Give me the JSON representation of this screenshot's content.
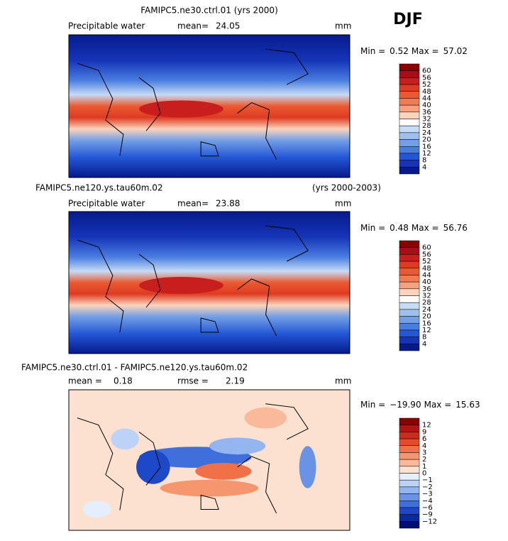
{
  "season": "DJF",
  "panels": [
    {
      "title": "FAMIPC5.ne30.ctrl.01 (yrs 2000)",
      "variable": "Precipitable water",
      "stats": [
        {
          "label": "mean=",
          "value": "24.05"
        }
      ],
      "units": "mm",
      "min_label": "Min =",
      "min": "0.52",
      "max_label": "Max =",
      "max": "57.02",
      "colorbar": {
        "labels": [
          "60",
          "56",
          "52",
          "48",
          "44",
          "40",
          "36",
          "32",
          "28",
          "24",
          "20",
          "16",
          "12",
          "8",
          "4"
        ],
        "colors": [
          "#8b0000",
          "#a50f15",
          "#c81e1e",
          "#de3b22",
          "#ea5a32",
          "#f27b52",
          "#f6a17f",
          "#fbd4bd",
          "#fdfcfa",
          "#c6dbf5",
          "#9ec0ef",
          "#739fe6",
          "#4a7de0",
          "#2457d6",
          "#1535b8",
          "#061a8c"
        ]
      }
    },
    {
      "title": "FAMIPC5.ne120.ys.tau60m.02",
      "title_right": "(yrs 2000-2003)",
      "variable": "Precipitable water",
      "stats": [
        {
          "label": "mean=",
          "value": "23.88"
        }
      ],
      "units": "mm",
      "min_label": "Min =",
      "min": "0.48",
      "max_label": "Max =",
      "max": "56.76",
      "colorbar": {
        "labels": [
          "60",
          "56",
          "52",
          "48",
          "44",
          "40",
          "36",
          "32",
          "28",
          "24",
          "20",
          "16",
          "12",
          "8",
          "4"
        ],
        "colors": [
          "#8b0000",
          "#a50f15",
          "#c81e1e",
          "#de3b22",
          "#ea5a32",
          "#f27b52",
          "#f6a17f",
          "#fbd4bd",
          "#fdfcfa",
          "#c6dbf5",
          "#9ec0ef",
          "#739fe6",
          "#4a7de0",
          "#2457d6",
          "#1535b8",
          "#061a8c"
        ]
      }
    },
    {
      "title": "FAMIPC5.ne30.ctrl.01 - FAMIPC5.ne120.ys.tau60m.02",
      "stats": [
        {
          "label": "mean =",
          "value": "0.18"
        },
        {
          "label": "rmse =",
          "value": "2.19"
        }
      ],
      "units": "mm",
      "min_label": "Min =",
      "min": "−19.90",
      "max_label": "Max =",
      "max": "15.63",
      "colorbar": {
        "labels": [
          "12",
          "9",
          "6",
          "4",
          "3",
          "2",
          "1",
          "0",
          "−1",
          "−2",
          "−3",
          "−4",
          "−6",
          "−9",
          "−12"
        ],
        "colors": [
          "#8b0000",
          "#b01515",
          "#d02a1a",
          "#e54a2a",
          "#f07048",
          "#f6966f",
          "#fab99a",
          "#fde1d0",
          "#e4eefc",
          "#bcd3f7",
          "#94b6f0",
          "#6a93e6",
          "#406fdb",
          "#1d48c8",
          "#0c2aa0",
          "#030f70"
        ]
      }
    }
  ]
}
